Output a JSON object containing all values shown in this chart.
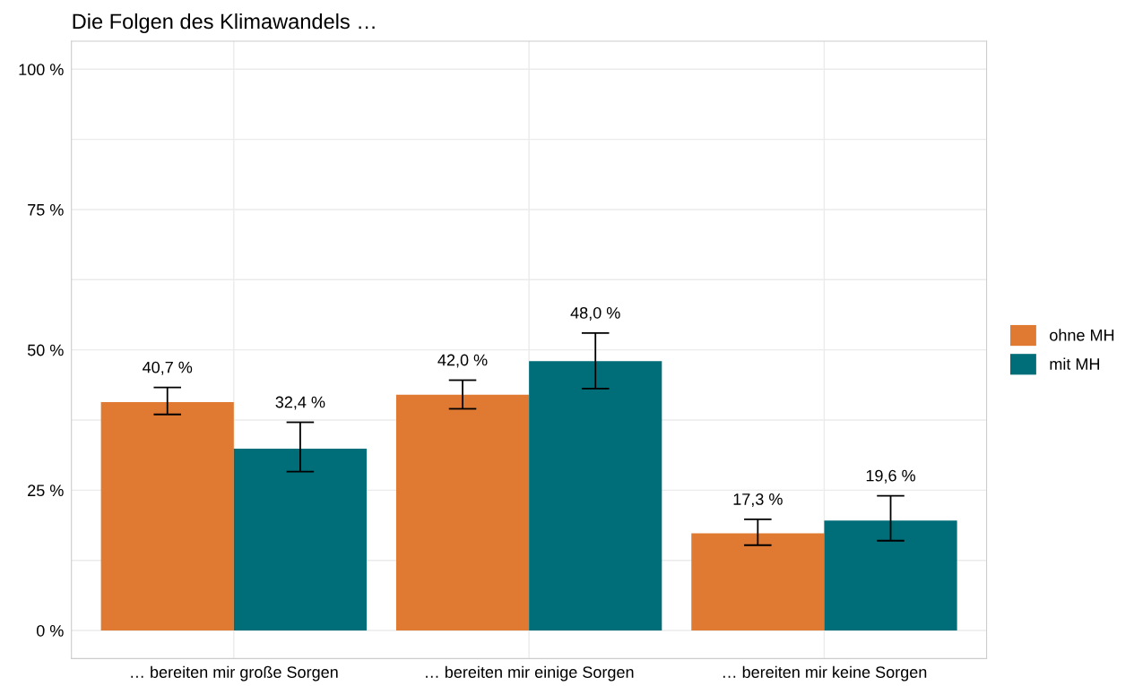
{
  "chart_data": {
    "type": "bar",
    "title": "Die Folgen des Klimawandels …",
    "categories": [
      "… bereiten mir große Sorgen",
      "… bereiten mir einige Sorgen",
      "… bereiten mir keine Sorgen"
    ],
    "series": [
      {
        "name": "ohne MH",
        "color": "#e07a33",
        "values": [
          40.7,
          42.0,
          17.3
        ],
        "errors": [
          [
            38.5,
            43.3
          ],
          [
            39.5,
            44.6
          ],
          [
            15.2,
            19.8
          ]
        ],
        "value_labels": [
          "40,7 %",
          "42,0 %",
          "17,3 %"
        ]
      },
      {
        "name": "mit MH",
        "color": "#006e78",
        "values": [
          32.4,
          48.0,
          19.6
        ],
        "errors": [
          [
            28.3,
            37.1
          ],
          [
            43.1,
            53.0
          ],
          [
            16.0,
            24.0
          ]
        ],
        "value_labels": [
          "32,4 %",
          "48,0 %",
          "19,6 %"
        ]
      }
    ],
    "ylim": [
      -5,
      105
    ],
    "yticks": [
      {
        "value": 0,
        "label": "0 %"
      },
      {
        "value": 12.5,
        "label": null
      },
      {
        "value": 25,
        "label": "25 %"
      },
      {
        "value": 37.5,
        "label": null
      },
      {
        "value": 50,
        "label": "50 %"
      },
      {
        "value": 62.5,
        "label": null
      },
      {
        "value": 75,
        "label": "75 %"
      },
      {
        "value": 87.5,
        "label": null
      },
      {
        "value": 100,
        "label": "100 %"
      }
    ],
    "grid": true,
    "legend": "right"
  }
}
